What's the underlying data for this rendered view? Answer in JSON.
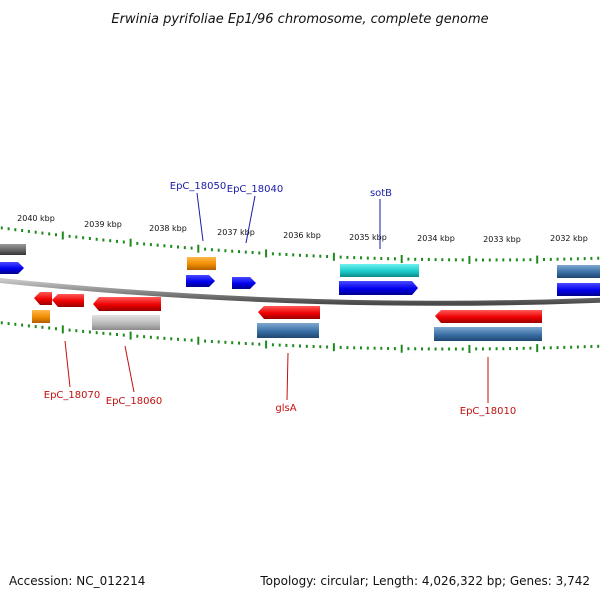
{
  "title": "Erwinia pyrifoliae Ep1/96 chromosome, complete genome",
  "scale_labels": [
    "2040 kbp",
    "2039 kbp",
    "2038 kbp",
    "2037 kbp",
    "2036 kbp",
    "2035 kbp",
    "2034 kbp",
    "2033 kbp",
    "2032 kbp"
  ],
  "gene_labels": [
    "EpC_18050",
    "EpC_18040",
    "sotB",
    "EpC_18070",
    "EpC_18060",
    "glsA",
    "EpC_18010"
  ],
  "footer": {
    "accession": "Accession: NC_012214",
    "topology": "Topology: circular; Length: 4,026,322 bp; Genes: 3,742"
  },
  "colors": {
    "backbone": "#8a8a8a",
    "tick_green": "#1e8a1e",
    "label_blue": "#1a1aa8",
    "label_red": "#c01010",
    "cds_blue": "#0a0aee",
    "cds_red": "#ee0000",
    "cds_orange": "#f08c00",
    "cds_cyan": "#1ccccc",
    "cds_steel": "#3a6fa6",
    "cds_grey": "#bbbbbb",
    "cds_darkgrey": "#666666"
  }
}
